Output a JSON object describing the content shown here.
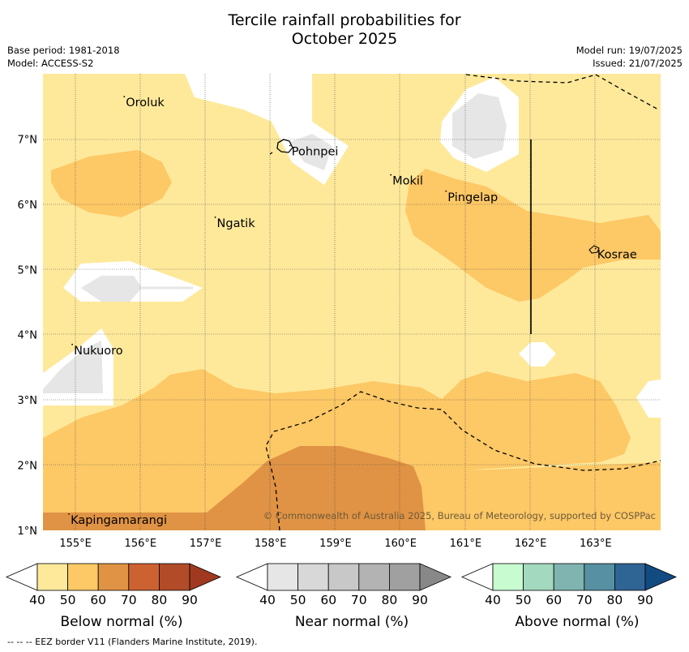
{
  "title_line1": "Tercile rainfall probabilities for",
  "title_line2": "October 2025",
  "meta_left": {
    "base_period": "Base period: 1981-2018",
    "model": "Model: ACCESS-S2"
  },
  "meta_right": {
    "model_run": "Model run: 19/07/2025",
    "issued": "Issued: 21/07/2025"
  },
  "map": {
    "lon_ticks": [
      "155°E",
      "156°E",
      "157°E",
      "158°E",
      "159°E",
      "160°E",
      "161°E",
      "162°E",
      "163°E"
    ],
    "lat_ticks": [
      "7°N",
      "6°N",
      "5°N",
      "4°N",
      "3°N",
      "2°N",
      "1°N"
    ],
    "lon_range": [
      154.5,
      164.0
    ],
    "lat_range": [
      1.0,
      8.0
    ],
    "places": [
      {
        "name": "Oroluk",
        "lon": 155.75,
        "lat": 7.65
      },
      {
        "name": "Pohnpei",
        "lon": 158.3,
        "lat": 6.9
      },
      {
        "name": "Mokil",
        "lon": 159.85,
        "lat": 6.45
      },
      {
        "name": "Pingelap",
        "lon": 160.7,
        "lat": 6.2
      },
      {
        "name": "Ngatik",
        "lon": 157.15,
        "lat": 5.8
      },
      {
        "name": "Kosrae",
        "lon": 163.0,
        "lat": 5.32
      },
      {
        "name": "Nukuoro",
        "lon": 154.95,
        "lat": 3.85
      },
      {
        "name": "Kapingamarangi",
        "lon": 154.9,
        "lat": 1.25
      }
    ],
    "copyright": "© Commonwealth of Australia 2025, Bureau of Meteorology, supported by COSPPac"
  },
  "colorbars": [
    {
      "label": "Below normal (%)",
      "ticks": [
        "40",
        "50",
        "60",
        "70",
        "80",
        "90"
      ],
      "colors": [
        "#ffffff",
        "#fee99b",
        "#fdc866",
        "#e09344",
        "#cc6232",
        "#b14b28",
        "#a0391f"
      ]
    },
    {
      "label": "Near normal (%)",
      "ticks": [
        "40",
        "50",
        "60",
        "70",
        "80",
        "90"
      ],
      "colors": [
        "#ffffff",
        "#e6e6e6",
        "#d8d8d8",
        "#c8c8c8",
        "#b3b3b3",
        "#a0a0a0",
        "#888888"
      ]
    },
    {
      "label": "Above normal (%)",
      "ticks": [
        "40",
        "50",
        "60",
        "70",
        "80",
        "90"
      ],
      "colors": [
        "#ffffff",
        "#c8fbd0",
        "#a3d9bf",
        "#7fb4b0",
        "#5790a2",
        "#2f6595",
        "#124a82"
      ]
    }
  ],
  "footer": "--  --  -- EEZ border V11 (Flanders Marine Institute, 2019)."
}
